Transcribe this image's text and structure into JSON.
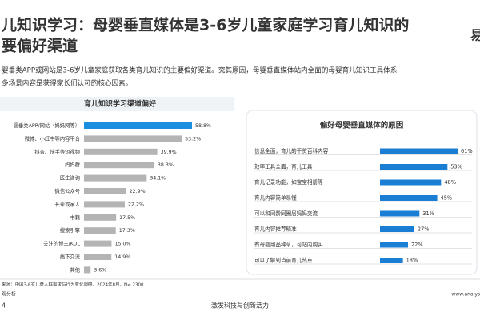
{
  "slide": {
    "title_lines": [
      "儿知识学习：母婴垂直媒体是3-6岁儿童家庭学习育儿知识的",
      "要偏好渠道"
    ],
    "logo": "易",
    "paragraph_lines": [
      "婴垂类APP或网站是3-6岁儿童家庭获取各类育儿知识的主要偏好渠道。究其原因，母婴垂直媒体站内全面的母婴育儿知识工具体系",
      "多场景内容是获得家长们认可的核心因素。"
    ],
    "source": "来源：中国3-6岁儿童人群需求与行为变化调研，2024年8月，N= 2300",
    "brand": "观分析",
    "page": "4",
    "slogan": "激发科技与创新活力",
    "url": "www.analys"
  },
  "chart_data": [
    {
      "type": "bar",
      "orientation": "horizontal",
      "title": "育儿知识学习渠道偏好",
      "categories": [
        "婴垂类APP/网站（妈妈网等）",
        "微博、小红书等内容平台",
        "抖音、快手等短视频",
        "妈妈群",
        "医生咨询",
        "微信公众号",
        "长辈或家人",
        "书籍",
        "搜索引擎",
        "关注的博主/KOL",
        "线下交流",
        "其他"
      ],
      "values": [
        58.8,
        53.2,
        39.9,
        38.3,
        34.1,
        22.9,
        22.2,
        17.5,
        17.3,
        15.0,
        14.9,
        3.6
      ],
      "value_labels": [
        "58.8%",
        "53.2%",
        "39.9%",
        "38.3%",
        "34.1%",
        "22.9%",
        "22.2%",
        "17.5%",
        "17.3%",
        "15.0%",
        "14.9%",
        "3.6%"
      ],
      "colors": [
        "#1a8fe0",
        "#b4b4b4",
        "#b4b4b4",
        "#b4b4b4",
        "#b4b4b4",
        "#b4b4b4",
        "#b4b4b4",
        "#b4b4b4",
        "#b4b4b4",
        "#b4b4b4",
        "#b4b4b4",
        "#b4b4b4"
      ]
    },
    {
      "type": "bar",
      "orientation": "horizontal",
      "title": "偏好母婴垂直媒体的原因",
      "categories": [
        "信息全面，育儿的干货百科内容",
        "效率工具全面，育儿工具",
        "育儿记录功能，如宝宝相册等",
        "育儿内容简单易懂",
        "可以和同龄同圈层妈妈交流",
        "育儿内容推荐精准",
        "有母婴用品种草，可站内购买",
        "可以了解到当前育儿热点"
      ],
      "values": [
        61,
        53,
        48,
        45,
        31,
        27,
        22,
        18
      ],
      "value_labels": [
        "61%",
        "53%",
        "48%",
        "45%",
        "31%",
        "27%",
        "22%",
        "18%"
      ],
      "colors": [
        "#1a7fd4",
        "#1a7fd4",
        "#1a7fd4",
        "#1a7fd4",
        "#1a7fd4",
        "#1a7fd4",
        "#1a7fd4",
        "#1a7fd4"
      ]
    }
  ]
}
